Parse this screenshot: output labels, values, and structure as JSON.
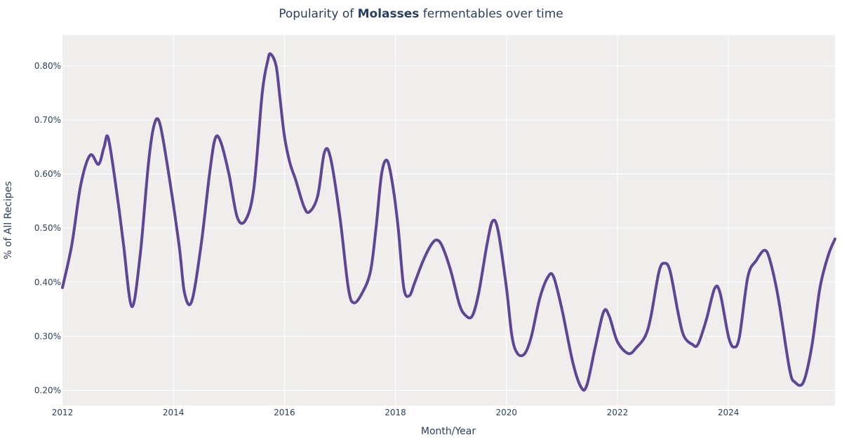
{
  "chart_data": {
    "type": "line",
    "title": {
      "prefix": "Popularity of ",
      "bold": "Molasses",
      "suffix": " fermentables over time"
    },
    "xlabel": "Month/Year",
    "ylabel": "% of All Recipes",
    "xlim": [
      2012.0,
      2025.92
    ],
    "ylim": [
      0.172,
      0.857
    ],
    "x_ticks": [
      {
        "value": 2012,
        "label": "2012"
      },
      {
        "value": 2014,
        "label": "2014"
      },
      {
        "value": 2016,
        "label": "2016"
      },
      {
        "value": 2018,
        "label": "2018"
      },
      {
        "value": 2020,
        "label": "2020"
      },
      {
        "value": 2022,
        "label": "2022"
      },
      {
        "value": 2024,
        "label": "2024"
      }
    ],
    "y_ticks": [
      {
        "value": 0.2,
        "label": "0.20%"
      },
      {
        "value": 0.3,
        "label": "0.30%"
      },
      {
        "value": 0.4,
        "label": "0.40%"
      },
      {
        "value": 0.5,
        "label": "0.50%"
      },
      {
        "value": 0.6,
        "label": "0.60%"
      },
      {
        "value": 0.7,
        "label": "0.70%"
      },
      {
        "value": 0.8,
        "label": "0.80%"
      }
    ],
    "series": [
      {
        "name": "Molasses",
        "color": "#5e4596",
        "points": [
          [
            2012.0,
            0.39
          ],
          [
            2012.17,
            0.47
          ],
          [
            2012.33,
            0.58
          ],
          [
            2012.5,
            0.635
          ],
          [
            2012.65,
            0.618
          ],
          [
            2012.75,
            0.65
          ],
          [
            2012.83,
            0.665
          ],
          [
            2013.0,
            0.55
          ],
          [
            2013.1,
            0.47
          ],
          [
            2013.25,
            0.355
          ],
          [
            2013.4,
            0.45
          ],
          [
            2013.55,
            0.62
          ],
          [
            2013.65,
            0.69
          ],
          [
            2013.75,
            0.695
          ],
          [
            2013.9,
            0.61
          ],
          [
            2014.1,
            0.47
          ],
          [
            2014.2,
            0.38
          ],
          [
            2014.33,
            0.365
          ],
          [
            2014.5,
            0.47
          ],
          [
            2014.65,
            0.6
          ],
          [
            2014.75,
            0.665
          ],
          [
            2014.85,
            0.66
          ],
          [
            2015.0,
            0.6
          ],
          [
            2015.15,
            0.52
          ],
          [
            2015.3,
            0.515
          ],
          [
            2015.45,
            0.575
          ],
          [
            2015.6,
            0.75
          ],
          [
            2015.7,
            0.81
          ],
          [
            2015.75,
            0.822
          ],
          [
            2015.85,
            0.8
          ],
          [
            2015.92,
            0.74
          ],
          [
            2016.0,
            0.67
          ],
          [
            2016.1,
            0.62
          ],
          [
            2016.2,
            0.59
          ],
          [
            2016.35,
            0.54
          ],
          [
            2016.45,
            0.53
          ],
          [
            2016.6,
            0.56
          ],
          [
            2016.72,
            0.64
          ],
          [
            2016.83,
            0.63
          ],
          [
            2017.0,
            0.52
          ],
          [
            2017.15,
            0.39
          ],
          [
            2017.25,
            0.362
          ],
          [
            2017.4,
            0.38
          ],
          [
            2017.55,
            0.42
          ],
          [
            2017.65,
            0.5
          ],
          [
            2017.75,
            0.6
          ],
          [
            2017.85,
            0.625
          ],
          [
            2017.95,
            0.58
          ],
          [
            2018.05,
            0.5
          ],
          [
            2018.15,
            0.39
          ],
          [
            2018.25,
            0.375
          ],
          [
            2018.35,
            0.4
          ],
          [
            2018.5,
            0.44
          ],
          [
            2018.65,
            0.47
          ],
          [
            2018.75,
            0.478
          ],
          [
            2018.85,
            0.465
          ],
          [
            2019.0,
            0.42
          ],
          [
            2019.15,
            0.36
          ],
          [
            2019.25,
            0.34
          ],
          [
            2019.38,
            0.337
          ],
          [
            2019.5,
            0.38
          ],
          [
            2019.65,
            0.47
          ],
          [
            2019.75,
            0.513
          ],
          [
            2019.85,
            0.495
          ],
          [
            2020.0,
            0.39
          ],
          [
            2020.1,
            0.3
          ],
          [
            2020.2,
            0.268
          ],
          [
            2020.33,
            0.268
          ],
          [
            2020.45,
            0.3
          ],
          [
            2020.6,
            0.37
          ],
          [
            2020.75,
            0.41
          ],
          [
            2020.85,
            0.41
          ],
          [
            2021.0,
            0.35
          ],
          [
            2021.2,
            0.25
          ],
          [
            2021.35,
            0.205
          ],
          [
            2021.45,
            0.21
          ],
          [
            2021.6,
            0.28
          ],
          [
            2021.75,
            0.345
          ],
          [
            2021.85,
            0.338
          ],
          [
            2022.0,
            0.29
          ],
          [
            2022.2,
            0.268
          ],
          [
            2022.35,
            0.28
          ],
          [
            2022.5,
            0.3
          ],
          [
            2022.6,
            0.335
          ],
          [
            2022.75,
            0.42
          ],
          [
            2022.85,
            0.435
          ],
          [
            2022.95,
            0.42
          ],
          [
            2023.1,
            0.34
          ],
          [
            2023.2,
            0.3
          ],
          [
            2023.35,
            0.285
          ],
          [
            2023.45,
            0.285
          ],
          [
            2023.6,
            0.33
          ],
          [
            2023.75,
            0.388
          ],
          [
            2023.85,
            0.38
          ],
          [
            2024.0,
            0.3
          ],
          [
            2024.1,
            0.28
          ],
          [
            2024.2,
            0.3
          ],
          [
            2024.35,
            0.41
          ],
          [
            2024.5,
            0.44
          ],
          [
            2024.65,
            0.459
          ],
          [
            2024.75,
            0.44
          ],
          [
            2024.9,
            0.37
          ],
          [
            2025.1,
            0.24
          ],
          [
            2025.2,
            0.215
          ],
          [
            2025.35,
            0.215
          ],
          [
            2025.5,
            0.28
          ],
          [
            2025.65,
            0.39
          ],
          [
            2025.8,
            0.45
          ],
          [
            2025.92,
            0.48
          ]
        ]
      }
    ]
  },
  "colors": {
    "plot_background": "#efeeed",
    "grid": "#ffffff",
    "text": "#2a3f5f"
  }
}
